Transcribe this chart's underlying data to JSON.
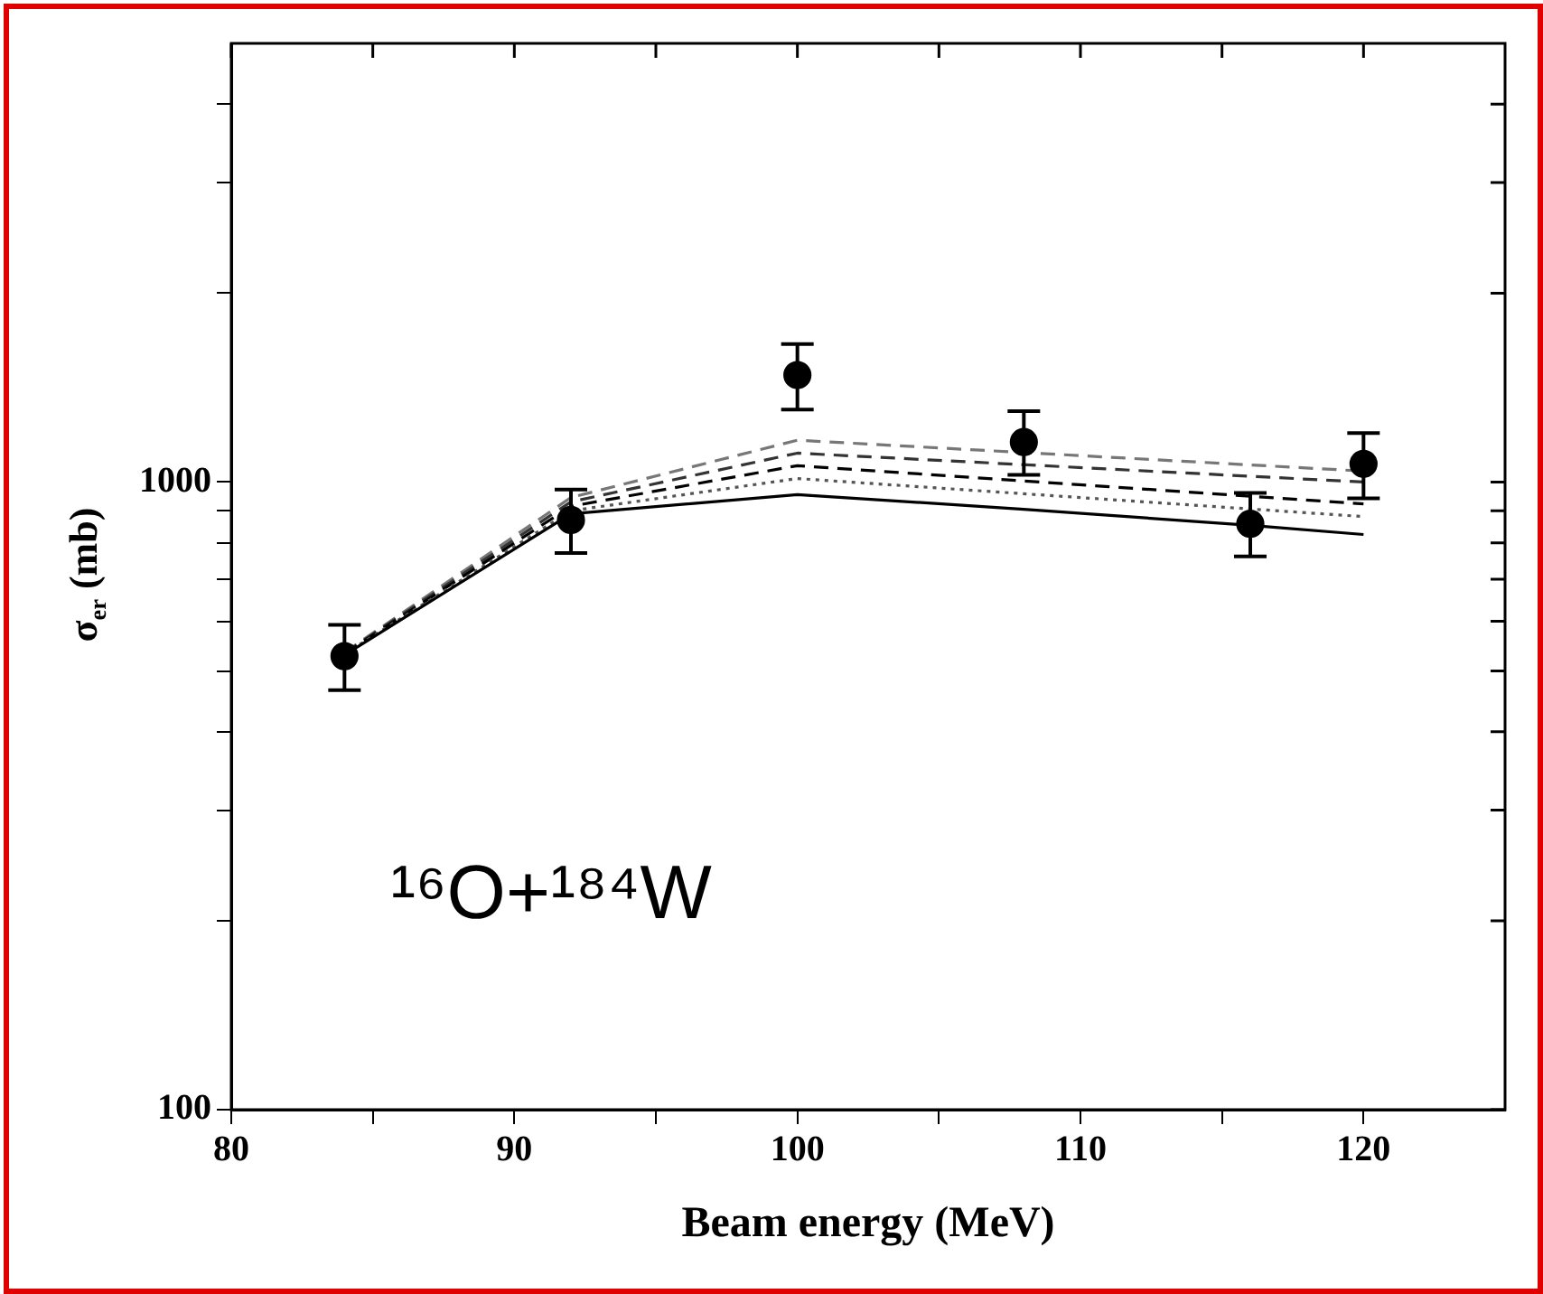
{
  "chart_data": {
    "type": "line",
    "xlabel": "Beam energy (MeV)",
    "ylabel": "σ$_{er}$ (mb)",
    "log": "y",
    "grid": false,
    "legend": false,
    "xlim": [
      80,
      125
    ],
    "xticks": [
      80,
      {
        "value": 85,
        "label": null
      },
      90,
      {
        "value": 95,
        "label": null
      },
      100,
      {
        "value": 105,
        "label": null
      },
      110,
      {
        "value": 115,
        "label": null
      },
      120
    ],
    "ylim": [
      100,
      5000
    ],
    "yticks": [
      100,
      {
        "value": 200,
        "label": null
      },
      {
        "value": 300,
        "label": null
      },
      {
        "value": 400,
        "label": null
      },
      {
        "value": 500,
        "label": null
      },
      {
        "value": 600,
        "label": null
      },
      {
        "value": 700,
        "label": null
      },
      {
        "value": 800,
        "label": null
      },
      {
        "value": 900,
        "label": null
      },
      1000,
      {
        "value": 2000,
        "label": null
      },
      {
        "value": 3000,
        "label": null
      },
      {
        "value": 4000,
        "label": null
      }
    ],
    "annotations": [
      "¹⁶O+¹⁸⁴W"
    ],
    "series": [
      {
        "type": "scatter",
        "color": "#000000",
        "marker": "circle",
        "x": [
          84,
          92,
          100,
          108,
          116,
          120
        ],
        "values": [
          528,
          870,
          1481,
          1158,
          858,
          1069
        ],
        "errors": [
          [
            466,
            592
          ],
          [
            771,
            973
          ],
          [
            1305,
            1659
          ],
          [
            1027,
            1297
          ],
          [
            761,
            961
          ],
          [
            942,
            1197
          ]
        ]
      },
      {
        "type": "line",
        "color": "#000000",
        "line_style": "solid",
        "marker": "none",
        "x": [
          84,
          92,
          100,
          108,
          116,
          120
        ],
        "values": [
          530,
          890,
          955,
          905,
          853,
          825
        ]
      },
      {
        "type": "line",
        "color": "#555555",
        "line_style": "dotted",
        "marker": "none",
        "x": [
          84,
          92,
          100,
          120
        ],
        "values": [
          532,
          900,
          1013,
          881
        ]
      },
      {
        "type": "line",
        "color": "#000000",
        "line_style": "dashed",
        "marker": "none",
        "x": [
          84,
          92,
          100,
          120
        ],
        "values": [
          533,
          915,
          1062,
          923
        ]
      },
      {
        "type": "line",
        "color": "#333333",
        "line_style": "dashed",
        "marker": "none",
        "x": [
          84,
          92,
          100,
          120
        ],
        "values": [
          534,
          930,
          1112,
          1000
        ]
      },
      {
        "type": "line",
        "color": "#777777",
        "line_style": "dashed",
        "marker": "none",
        "x": [
          84,
          92,
          100,
          120
        ],
        "values": [
          535,
          945,
          1166,
          1041
        ]
      }
    ]
  }
}
